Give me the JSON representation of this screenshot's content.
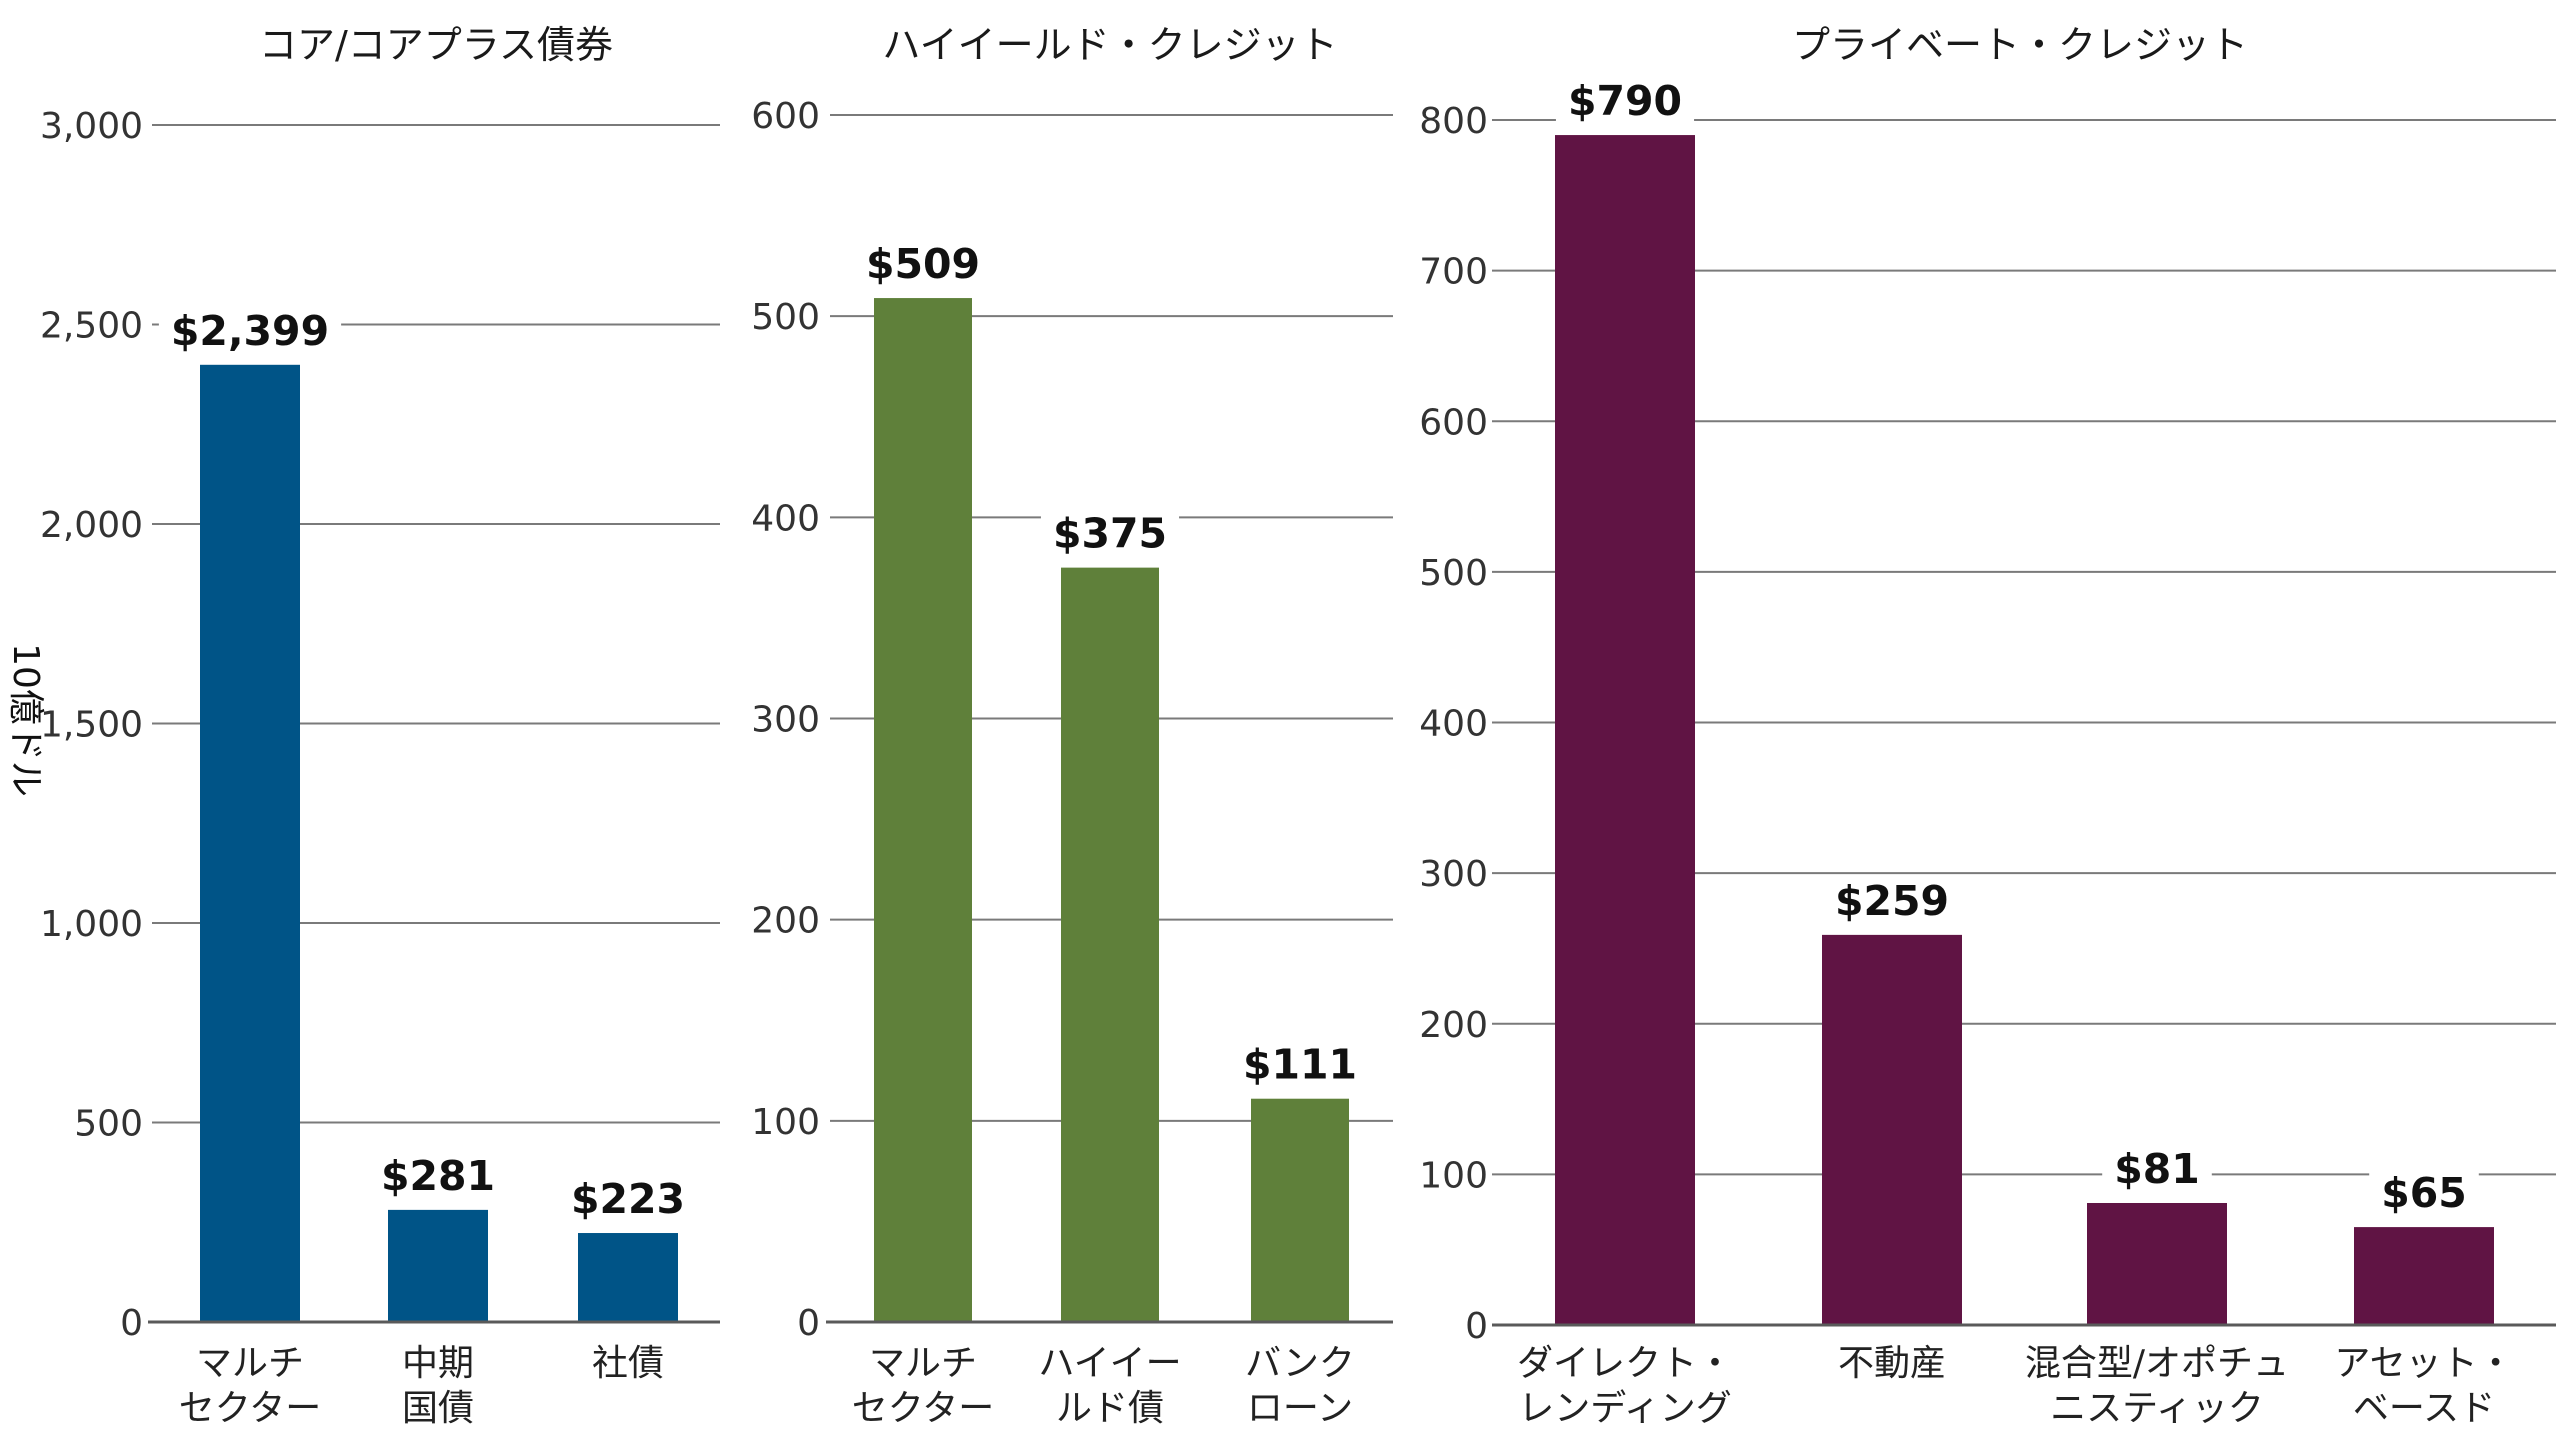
{
  "y_axis_label": "10億ドル",
  "chart_data": [
    {
      "type": "bar",
      "title": "コア/コアプラス債券",
      "color": "#005487",
      "ylim": [
        0,
        3000
      ],
      "ticks": [
        0,
        500,
        1000,
        1500,
        2000,
        2500,
        3000
      ],
      "tick_labels": [
        "0",
        "500",
        "1,000",
        "1,500",
        "2,000",
        "2,500",
        "3,000"
      ],
      "categories": [
        [
          "マルチ",
          "セクター"
        ],
        [
          "中期",
          "国債"
        ],
        [
          "社債"
        ]
      ],
      "values": [
        2399,
        281,
        223
      ],
      "value_labels": [
        "$2,399",
        "$281",
        "$223"
      ]
    },
    {
      "type": "bar",
      "title": "ハイイールド・クレジット",
      "color": "#5f803a",
      "ylim": [
        0,
        600
      ],
      "ticks": [
        0,
        100,
        200,
        300,
        400,
        500,
        600
      ],
      "tick_labels": [
        "0",
        "100",
        "200",
        "300",
        "400",
        "500",
        "600"
      ],
      "categories": [
        [
          "マルチ",
          "セクター"
        ],
        [
          "ハイイー",
          "ルド債"
        ],
        [
          "バンク",
          "ローン"
        ]
      ],
      "values": [
        509,
        375,
        111
      ],
      "value_labels": [
        "$509",
        "$375",
        "$111"
      ]
    },
    {
      "type": "bar",
      "title": "プライベート・クレジット",
      "color": "#601444",
      "ylim": [
        0,
        800
      ],
      "ticks": [
        0,
        100,
        200,
        300,
        400,
        500,
        600,
        700,
        800
      ],
      "tick_labels": [
        "0",
        "100",
        "200",
        "300",
        "400",
        "500",
        "600",
        "700",
        "800"
      ],
      "categories": [
        [
          "ダイレクト・",
          "レンディング"
        ],
        [
          "不動産"
        ],
        [
          "混合型/オポチュ",
          "ニスティック"
        ],
        [
          "アセット・",
          "ベースド"
        ]
      ],
      "values": [
        790,
        259,
        81,
        65
      ],
      "value_labels": [
        "$790",
        "$259",
        "$81",
        "$65"
      ]
    }
  ]
}
